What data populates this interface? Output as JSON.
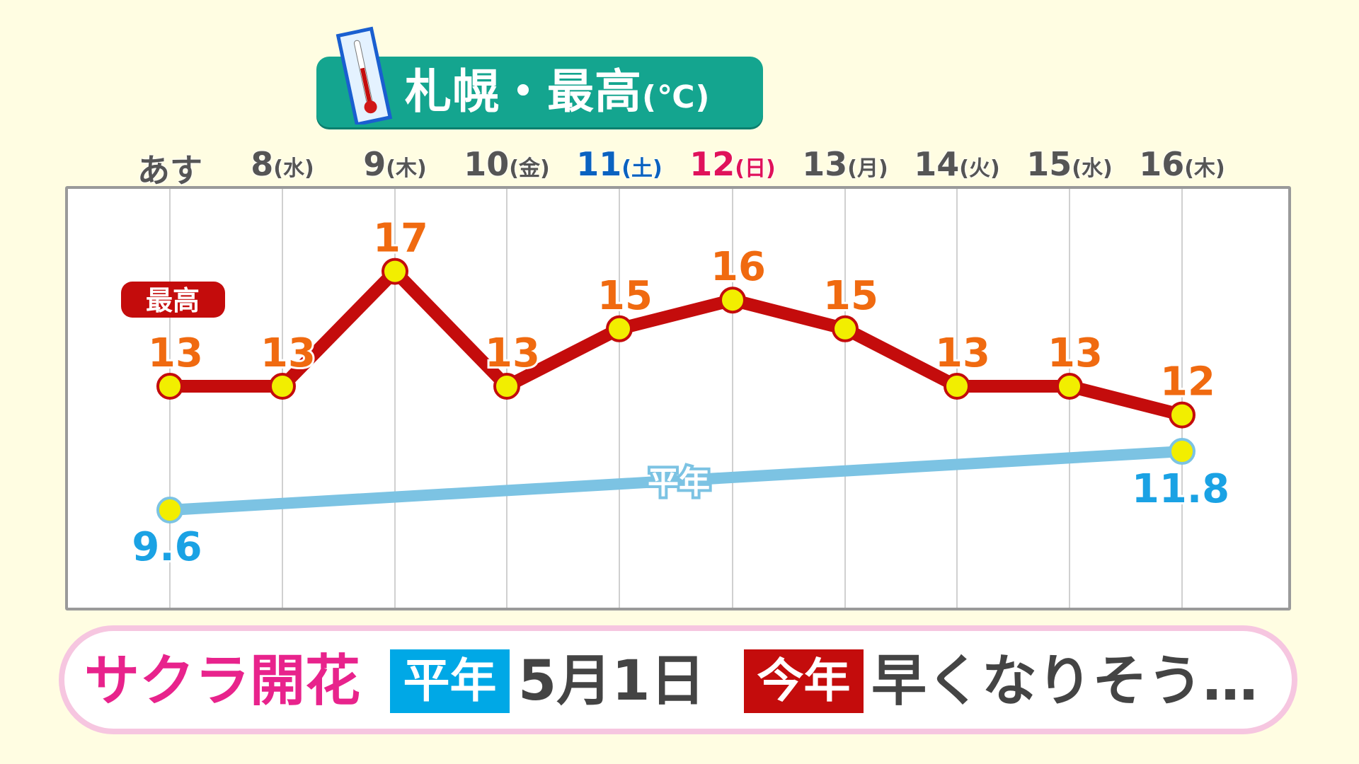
{
  "title": {
    "city": "札幌・最高",
    "unit": "(℃)",
    "icon": "thermometer-icon",
    "color": "#14a58f"
  },
  "chart_data": {
    "type": "line",
    "title": "札幌・最高(℃)",
    "categories": [
      {
        "day": "あす",
        "dow": ""
      },
      {
        "day": "8",
        "dow": "(水)"
      },
      {
        "day": "9",
        "dow": "(木)"
      },
      {
        "day": "10",
        "dow": "(金)"
      },
      {
        "day": "11",
        "dow": "(土)"
      },
      {
        "day": "12",
        "dow": "(日)"
      },
      {
        "day": "13",
        "dow": "(月)"
      },
      {
        "day": "14",
        "dow": "(火)"
      },
      {
        "day": "15",
        "dow": "(水)"
      },
      {
        "day": "16",
        "dow": "(木)"
      }
    ],
    "category_colors": [
      "#555555",
      "#555555",
      "#555555",
      "#555555",
      "#0a62c0",
      "#e0125a",
      "#555555",
      "#555555",
      "#555555",
      "#555555"
    ],
    "series": [
      {
        "name": "最高",
        "values": [
          13,
          13,
          17,
          13,
          15,
          16,
          15,
          13,
          13,
          12
        ],
        "color": "#c40c0c",
        "label_color": "#f06a10"
      },
      {
        "name": "平年",
        "start": 9.6,
        "end": 11.8,
        "start_label": "9.6",
        "end_label": "11.8",
        "color": "#7cc3e3",
        "label_color": "#1aa2e4"
      }
    ],
    "grid": true,
    "point_color": "#f2ee00"
  },
  "banner": {
    "subject": "サクラ開花",
    "normal_tag": "平年",
    "normal_date": "5月1日",
    "this_year_tag": "今年",
    "this_year_text": "早くなりそう…",
    "colors": {
      "subject": "#e8238c",
      "normal_tag": "#00a8e6",
      "this_year_tag": "#c40c0c",
      "text": "#444444"
    }
  }
}
